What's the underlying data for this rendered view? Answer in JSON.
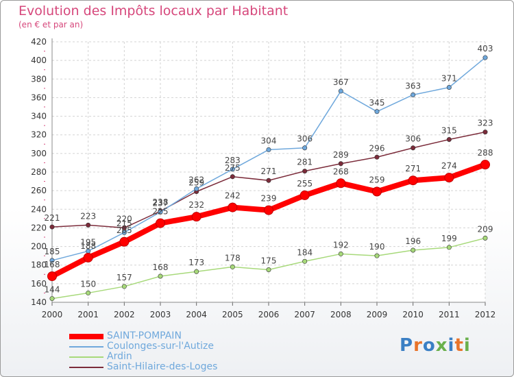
{
  "chart_data": {
    "type": "line",
    "title": "Evolution des Impôts locaux par Habitant",
    "subtitle": "(en € et par an)",
    "xlabel": "",
    "ylabel": "",
    "categories": [
      "2000",
      "2001",
      "2002",
      "2003",
      "2004",
      "2005",
      "2006",
      "2007",
      "2008",
      "2009",
      "2010",
      "2011",
      "2012"
    ],
    "ylim": [
      140,
      420
    ],
    "yticks": [
      140,
      160,
      180,
      200,
      220,
      240,
      260,
      280,
      300,
      320,
      340,
      360,
      380,
      400,
      420
    ],
    "grid": true,
    "legend_position": "bottom-left",
    "series": [
      {
        "name": "SAINT-POMPAIN",
        "color": "#ff0000",
        "values": [
          168,
          188,
          205,
          225,
          232,
          242,
          239,
          255,
          268,
          259,
          271,
          274,
          288
        ]
      },
      {
        "name": "Coulonges-sur-l'Autize",
        "color": "#6fa8dc",
        "values": [
          185,
          195,
          215,
          237,
          262,
          283,
          304,
          306,
          367,
          345,
          363,
          371,
          403
        ]
      },
      {
        "name": "Ardin",
        "color": "#a7d97a",
        "values": [
          144,
          150,
          157,
          168,
          173,
          178,
          175,
          184,
          192,
          190,
          196,
          199,
          209
        ]
      },
      {
        "name": "Saint-Hilaire-des-Loges",
        "color": "#7b2b3a",
        "values": [
          221,
          223,
          220,
          238,
          259,
          275,
          271,
          281,
          289,
          296,
          306,
          315,
          323
        ]
      }
    ]
  },
  "logo": {
    "text": "Proxiti"
  }
}
